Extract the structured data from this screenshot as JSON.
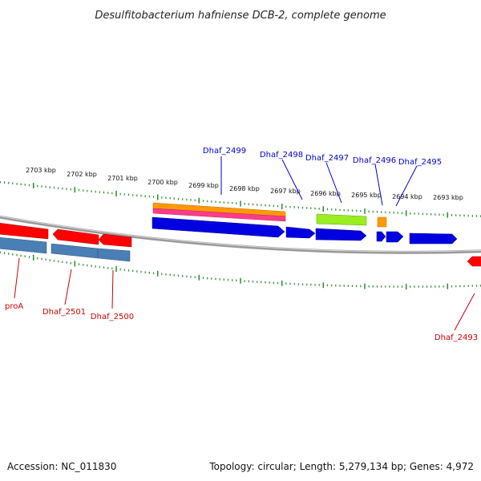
{
  "title": "Desulfitobacterium hafniense DCB-2, complete genome",
  "footer": {
    "accession": "Accession: NC_011830",
    "summary": "Topology: circular; Length: 5,279,134 bp; Genes: 4,972"
  },
  "colors": {
    "forward_gene": "#0000e0",
    "reverse_gene": "#ff0000",
    "steel_feature": "#4a7fb5",
    "orange_feature": "#ff9900",
    "magenta_feature": "#ff3c8c",
    "lime_feature": "#99ee22",
    "tick_green": "#2a8a2a",
    "backbone": "#808080",
    "forward_label": "#0000cc",
    "reverse_label": "#cc0000"
  },
  "kbp_ticks": [
    "2703 kbp",
    "2702 kbp",
    "2701 kbp",
    "2700 kbp",
    "2699 kbp",
    "2698 kbp",
    "2697 kbp",
    "2696 kbp",
    "2695 kbp",
    "2694 kbp",
    "2693 kbp"
  ],
  "forward_labels": [
    "Dhaf_2499",
    "Dhaf_2498",
    "Dhaf_2497",
    "Dhaf_2496",
    "Dhaf_2495"
  ],
  "reverse_labels": [
    "proA",
    "Dhaf_2501",
    "Dhaf_2500",
    "Dhaf_2493"
  ]
}
